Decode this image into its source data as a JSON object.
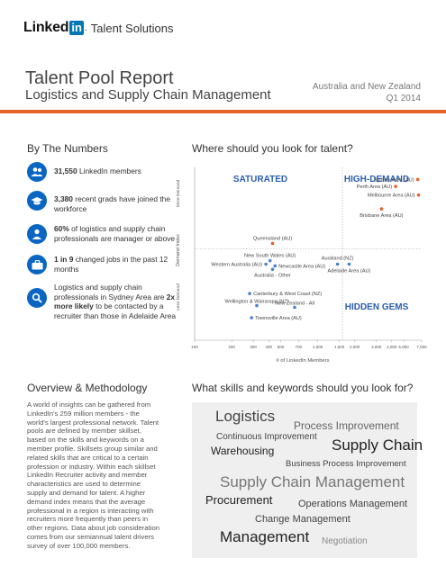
{
  "header": {
    "brand_linked": "Linked",
    "brand_in": "in",
    "brand_suffix": "Talent Solutions",
    "title": "Talent Pool Report",
    "subtitle": "Logistics and Supply Chain Management",
    "region_line1": "Australia and New Zealand",
    "region_line2": "Q1 2014"
  },
  "numbers": {
    "heading": "By The Numbers",
    "items": [
      {
        "icon": "people-icon",
        "bold": "31,550",
        "text": " LinkedIn members"
      },
      {
        "icon": "graduation-cap-icon",
        "bold": "3,380",
        "text": " recent grads have joined the workforce"
      },
      {
        "icon": "person-icon",
        "bold": "60%",
        "text": " of logistics and supply chain professionals are manager or above"
      },
      {
        "icon": "briefcase-icon",
        "bold": "1 in 9",
        "text": " changed jobs in the past 12 months"
      },
      {
        "icon": "search-icon",
        "text_pre": "Logistics and supply chain professionals in Sydney Area are ",
        "bold": "2x more likely",
        "text": " to be contacted by a recruiter than those in Adelaide Area"
      }
    ]
  },
  "method": {
    "heading": "Overview & Methodology",
    "body": "A world of insights can be gathered from LinkedIn's 259 million members - the world's largest professional network. Talent pools are defined by member skillset, based on the skills and keywords on a member profile. Skillsets group similar and related skills that are critical to a certain profession or industry. Within each skillset LinkedIn Recruiter activity and member characteristics are used to determine supply and demand for talent. A higher demand index means that the average professional in a region is interacting with recruiters more frequently than peers in other regions. Data about job consideration comes from our semiannual talent drivers survey of over 100,000 members."
  },
  "talent": {
    "heading": "Where should you look for talent?"
  },
  "chart_data": {
    "type": "scatter",
    "xlabel": "# of LinkedIn Members",
    "ylabel": "Demand Index",
    "y_top_label": "More Demand",
    "y_bottom_label": "Less Demand",
    "xscale": "log",
    "xlim": [
      100,
      7000
    ],
    "x_ticks": [
      100,
      200,
      300,
      400,
      500,
      700,
      1000,
      1500,
      2000,
      3000,
      4000,
      5000,
      7000
    ],
    "x_tick_labels": [
      "100",
      "200",
      "300",
      "400",
      "500",
      "700",
      "1,000",
      "1,500",
      "2,000",
      "3,000",
      "4,000",
      "5,000",
      "7,000"
    ],
    "quadrants": {
      "top_left": "SATURATED",
      "top_right": "HIGH-DEMAND",
      "bottom_right": "HIDDEN GEMS"
    },
    "colors": {
      "high_demand": "#e4632a",
      "other": "#4a7fcf",
      "quadrant_text": "#2a5db0"
    },
    "points": [
      {
        "label": "Sydney Area (AU)",
        "x": 6500,
        "y": 0.93,
        "group": "high_demand"
      },
      {
        "label": "Perth Area (AU)",
        "x": 4300,
        "y": 0.89,
        "group": "high_demand"
      },
      {
        "label": "Melbourne Area (AU)",
        "x": 6600,
        "y": 0.84,
        "group": "high_demand"
      },
      {
        "label": "Brisbane Area (AU)",
        "x": 3300,
        "y": 0.76,
        "group": "high_demand"
      },
      {
        "label": "Queensland (AU)",
        "x": 430,
        "y": 0.56,
        "group": "high_demand"
      },
      {
        "label": "New South Wales (AU)",
        "x": 410,
        "y": 0.46,
        "group": "other"
      },
      {
        "label": "Western Australia (AU)",
        "x": 380,
        "y": 0.44,
        "group": "other"
      },
      {
        "label": "Newcastle Area (AU)",
        "x": 450,
        "y": 0.43,
        "group": "other"
      },
      {
        "label": "Australia - Other",
        "x": 430,
        "y": 0.41,
        "group": "other"
      },
      {
        "label": "Auckland (NZ)",
        "x": 1450,
        "y": 0.44,
        "group": "other"
      },
      {
        "label": "Adelaide Area (AU)",
        "x": 1800,
        "y": 0.44,
        "group": "other"
      },
      {
        "label": "Canterbury & West Coast (NZ)",
        "x": 280,
        "y": 0.27,
        "group": "other"
      },
      {
        "label": "Wellington & Wairarapa (NZ)",
        "x": 320,
        "y": 0.2,
        "group": "other"
      },
      {
        "label": "New Zealand - All",
        "x": 650,
        "y": 0.19,
        "group": "other"
      },
      {
        "label": "Townsville Area (AU)",
        "x": 290,
        "y": 0.13,
        "group": "other"
      }
    ]
  },
  "skills": {
    "heading": "What skills and keywords should you look for?",
    "words": [
      {
        "text": "Logistics",
        "size": 17,
        "color": "#444"
      },
      {
        "text": "Process Improvement",
        "size": 12,
        "color": "#666"
      },
      {
        "text": "Continuous Improvement",
        "size": 10,
        "color": "#444"
      },
      {
        "text": "Warehousing",
        "size": 12,
        "color": "#222"
      },
      {
        "text": "Supply Chain",
        "size": 17,
        "color": "#222"
      },
      {
        "text": "Business Process Improvement",
        "size": 9.5,
        "color": "#444"
      },
      {
        "text": "Supply Chain Management",
        "size": 17,
        "color": "#777"
      },
      {
        "text": "Procurement",
        "size": 13,
        "color": "#222"
      },
      {
        "text": "Operations Management",
        "size": 11,
        "color": "#444"
      },
      {
        "text": "Change Management",
        "size": 11,
        "color": "#444"
      },
      {
        "text": "Management",
        "size": 17,
        "color": "#222"
      },
      {
        "text": "Negotiation",
        "size": 10,
        "color": "#888"
      }
    ]
  }
}
